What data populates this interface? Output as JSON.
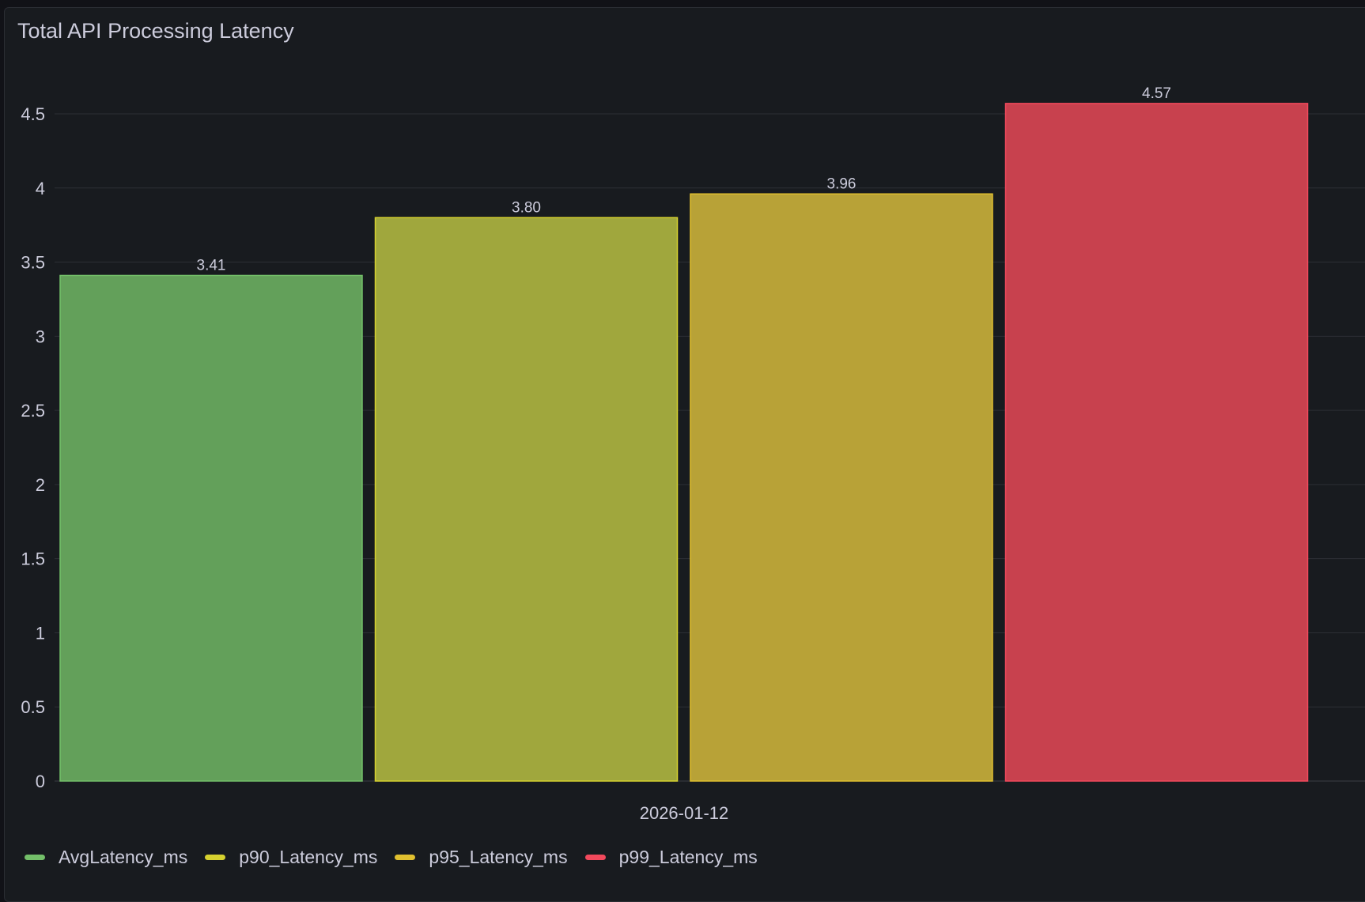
{
  "panel": {
    "title": "Total API Processing Latency"
  },
  "chart_data": {
    "type": "bar",
    "title": "Total API Processing Latency",
    "categories": [
      "2026-01-12"
    ],
    "series": [
      {
        "name": "AvgLatency_ms",
        "values": [
          3.41
        ],
        "label": "3.41",
        "color": "#73bf69",
        "fill": "#63a05a"
      },
      {
        "name": "p90_Latency_ms",
        "values": [
          3.8
        ],
        "label": "3.80",
        "color": "#d6d12f",
        "fill": "#a0a73d"
      },
      {
        "name": "p95_Latency_ms",
        "values": [
          3.96
        ],
        "label": "3.96",
        "color": "#e0c02f",
        "fill": "#b8a237"
      },
      {
        "name": "p99_Latency_ms",
        "values": [
          4.57
        ],
        "label": "4.57",
        "color": "#f2495c",
        "fill": "#c8414e"
      }
    ],
    "yticks": [
      "0",
      "0.5",
      "1",
      "1.5",
      "2",
      "2.5",
      "3",
      "3.5",
      "4",
      "4.5"
    ],
    "ylim": [
      0,
      4.5
    ],
    "grid": true,
    "legend": "bottom-left",
    "xlabel": "",
    "ylabel": ""
  }
}
